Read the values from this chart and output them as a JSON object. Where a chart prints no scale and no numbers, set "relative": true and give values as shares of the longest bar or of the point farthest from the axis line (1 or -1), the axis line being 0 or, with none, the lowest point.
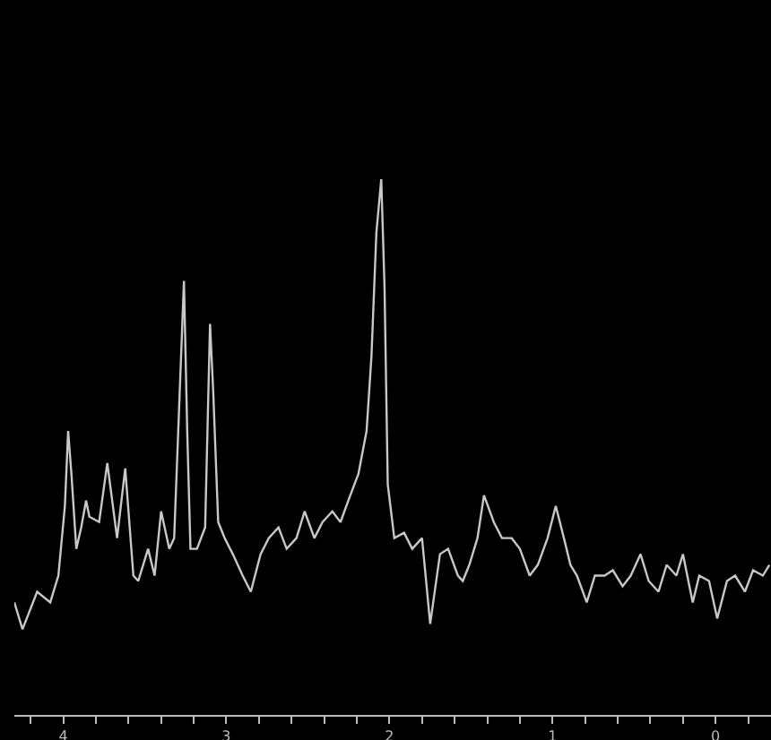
{
  "chart_data": {
    "type": "line",
    "relative": true,
    "grid": false,
    "legend": false,
    "marker": "none",
    "line_style": "solid",
    "xlim": [
      4.3,
      -0.34
    ],
    "xticks": [
      {
        "value": 4.2,
        "label": null
      },
      4,
      {
        "value": 3.8,
        "label": null
      },
      {
        "value": 3.6,
        "label": null
      },
      {
        "value": 3.4,
        "label": null
      },
      {
        "value": 3.2,
        "label": null
      },
      3,
      {
        "value": 2.8,
        "label": null
      },
      {
        "value": 2.6,
        "label": null
      },
      {
        "value": 2.4,
        "label": null
      },
      {
        "value": 2.2,
        "label": null
      },
      2,
      {
        "value": 1.8,
        "label": null
      },
      {
        "value": 1.6,
        "label": null
      },
      {
        "value": 1.4,
        "label": null
      },
      {
        "value": 1.2,
        "label": null
      },
      1,
      {
        "value": 0.8,
        "label": null
      },
      {
        "value": 0.6,
        "label": null
      },
      {
        "value": 0.4,
        "label": null
      },
      {
        "value": 0.2,
        "label": null
      },
      0,
      {
        "value": -0.2,
        "label": null
      }
    ],
    "series": [
      {
        "color": "#c8c8c8",
        "x": [
          4.3,
          4.25,
          4.16,
          4.08,
          4.03,
          3.99,
          3.97,
          3.95,
          3.92,
          3.89,
          3.86,
          3.84,
          3.78,
          3.73,
          3.67,
          3.62,
          3.57,
          3.54,
          3.48,
          3.44,
          3.4,
          3.35,
          3.32,
          3.29,
          3.26,
          3.24,
          3.22,
          3.18,
          3.13,
          3.1,
          3.08,
          3.05,
          3.01,
          2.96,
          2.9,
          2.85,
          2.79,
          2.74,
          2.68,
          2.63,
          2.57,
          2.52,
          2.46,
          2.41,
          2.35,
          2.3,
          2.24,
          2.19,
          2.14,
          2.11,
          2.08,
          2.05,
          2.03,
          2.01,
          1.97,
          1.91,
          1.86,
          1.8,
          1.75,
          1.69,
          1.64,
          1.58,
          1.55,
          1.51,
          1.46,
          1.42,
          1.36,
          1.31,
          1.25,
          1.2,
          1.14,
          1.09,
          1.03,
          0.98,
          0.93,
          0.89,
          0.85,
          0.79,
          0.74,
          0.68,
          0.63,
          0.57,
          0.52,
          0.46,
          0.41,
          0.35,
          0.3,
          0.24,
          0.2,
          0.14,
          0.1,
          0.04,
          -0.01,
          -0.07,
          -0.12,
          -0.18,
          -0.23,
          -0.29,
          -0.33
        ],
        "values": [
          0.21,
          0.16,
          0.23,
          0.21,
          0.26,
          0.39,
          0.53,
          0.45,
          0.31,
          0.35,
          0.4,
          0.37,
          0.36,
          0.47,
          0.33,
          0.46,
          0.26,
          0.25,
          0.31,
          0.26,
          0.38,
          0.31,
          0.33,
          0.57,
          0.81,
          0.53,
          0.31,
          0.31,
          0.35,
          0.73,
          0.6,
          0.36,
          0.33,
          0.3,
          0.26,
          0.23,
          0.3,
          0.33,
          0.35,
          0.31,
          0.33,
          0.38,
          0.33,
          0.36,
          0.38,
          0.36,
          0.41,
          0.45,
          0.53,
          0.67,
          0.9,
          1,
          0.8,
          0.43,
          0.33,
          0.34,
          0.31,
          0.33,
          0.17,
          0.3,
          0.31,
          0.26,
          0.25,
          0.28,
          0.33,
          0.41,
          0.36,
          0.33,
          0.33,
          0.31,
          0.26,
          0.28,
          0.33,
          0.39,
          0.33,
          0.28,
          0.26,
          0.21,
          0.26,
          0.26,
          0.27,
          0.24,
          0.26,
          0.3,
          0.25,
          0.23,
          0.28,
          0.26,
          0.3,
          0.21,
          0.26,
          0.25,
          0.18,
          0.25,
          0.26,
          0.23,
          0.27,
          0.26,
          0.28
        ]
      }
    ]
  }
}
